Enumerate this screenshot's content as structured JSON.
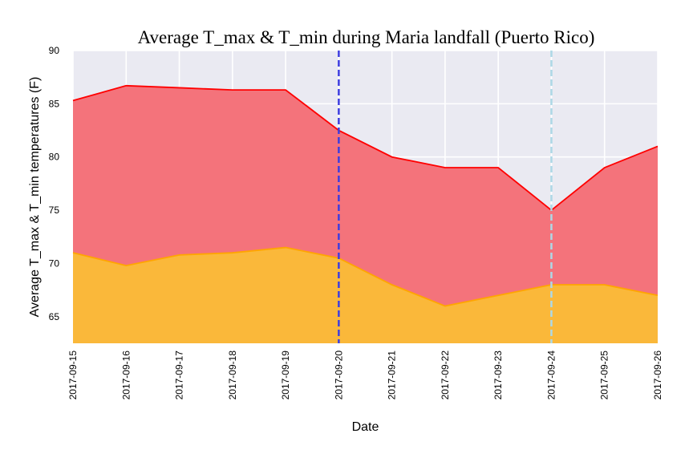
{
  "chart_data": {
    "type": "area",
    "title": "Average T_max & T_min during Maria landfall (Puerto Rico)",
    "xlabel": "Date",
    "ylabel": "Average T_max & T_min temperatures (F)",
    "ylim": [
      62.5,
      90
    ],
    "yticks": [
      65,
      70,
      75,
      80,
      85,
      90
    ],
    "categories": [
      "2017-09-15",
      "2017-09-16",
      "2017-09-17",
      "2017-09-18",
      "2017-09-19",
      "2017-09-20",
      "2017-09-21",
      "2017-09-22",
      "2017-09-23",
      "2017-09-24",
      "2017-09-25",
      "2017-09-26"
    ],
    "series": [
      {
        "key": "tmax",
        "values": [
          85.3,
          86.7,
          86.5,
          86.3,
          86.3,
          82.5,
          80.0,
          79.0,
          79.0,
          75.0,
          79.0,
          81.0
        ],
        "line_color": "#ff0000",
        "fill_color": "#f4737b"
      },
      {
        "key": "tmin",
        "values": [
          71.0,
          69.8,
          70.8,
          71.0,
          71.5,
          70.5,
          68.0,
          66.0,
          67.0,
          68.0,
          68.0,
          67.0
        ],
        "line_color": "#ffa500",
        "fill_color": "#fab83a"
      }
    ],
    "vlines": [
      {
        "x": "2017-09-20",
        "color": "#3d3de0",
        "style": "dashed"
      },
      {
        "x": "2017-09-24",
        "color": "#add8e6",
        "style": "dashed"
      }
    ],
    "grid": true,
    "background": "#eaeaf2"
  }
}
